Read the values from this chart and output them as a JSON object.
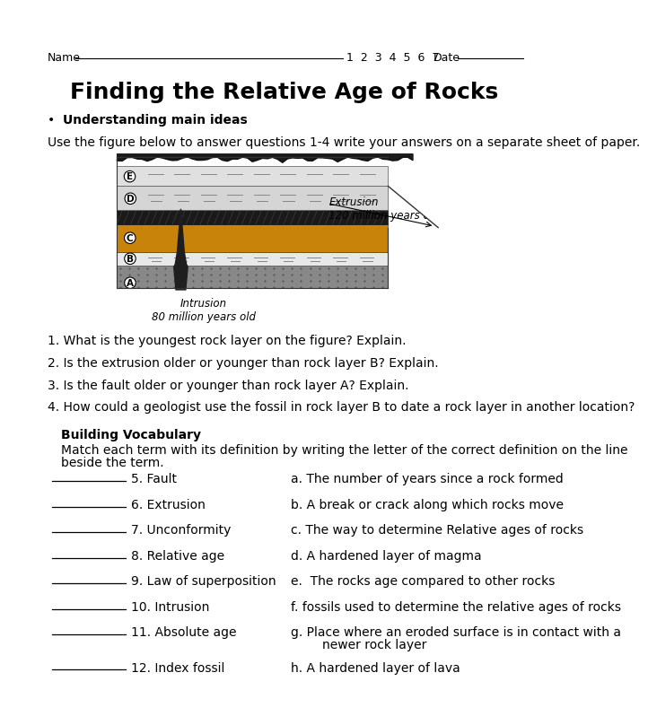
{
  "title": "Finding the Relative Age of Rocks",
  "name_prefix": "Name",
  "name_nums": "1  2  3  4  5  6  7   Date",
  "section1_header": "Understanding main ideas",
  "intro_text": "Use the figure below to answer questions 1-4 write your answers on a separate sheet of paper.",
  "questions": [
    "1. What is the youngest rock layer on the figure? Explain.",
    "2. Is the extrusion older or younger than rock layer B? Explain.",
    "3. Is the fault older or younger than rock layer A? Explain.",
    "4. How could a geologist use the fossil in rock layer B to date a rock layer in another location?"
  ],
  "vocab_header": "Building Vocabulary",
  "vocab_intro": "Match each term with its definition by writing the letter of the correct definition on the line beside the term.",
  "vocab_terms": [
    "5. Fault",
    "6. Extrusion",
    "7. Unconformity",
    "8. Relative age",
    "9. Law of superposition",
    "10. Intrusion",
    "11. Absolute age",
    "12. Index fossil"
  ],
  "vocab_defs": [
    "a. The number of years since a rock formed",
    "b. A break or crack along which rocks move",
    "c. The way to determine Relative ages of rocks",
    "d. A hardened layer of magma",
    "e.  The rocks age compared to other rocks",
    "f. fossils used to determine the relative ages of rocks",
    "g. Place where an eroded surface is in contact with a\nnewer rock layer",
    "h. A hardened layer of lava"
  ],
  "bg_color": "#ffffff",
  "text_color": "#000000"
}
